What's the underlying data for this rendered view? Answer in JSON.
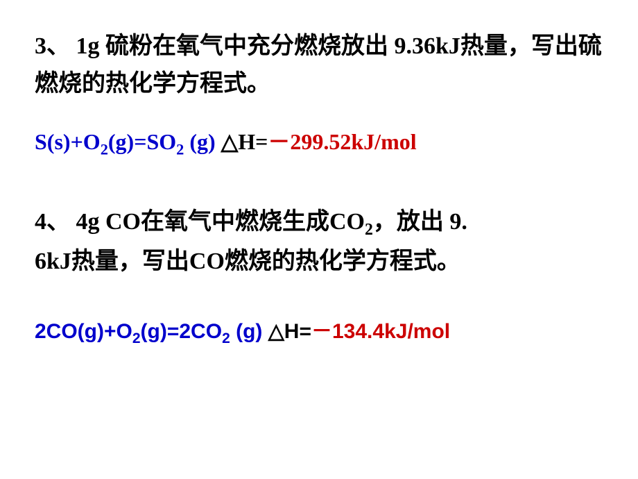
{
  "question3": {
    "text": "3、 1g 硫粉在氧气中充分燃烧放出 9.36kJ热量，写出硫燃烧的热化学方程式。"
  },
  "equation3": {
    "lhs_prefix": "S(s)+O",
    "lhs_sub1": "2",
    "lhs_mid": "(g)=SO",
    "lhs_sub2": "2",
    "lhs_suffix": " (g)",
    "spacer": "   ",
    "delta": "△H=",
    "value": "－299.52kJ/mol",
    "color_lhs": "#0000cc",
    "color_delta": "#000000",
    "color_value": "#cc0000"
  },
  "question4": {
    "text_line1_a": "4、 4g CO在氧气中燃烧生成CO",
    "text_line1_sub": "2",
    "text_line1_b": "，放出 9.",
    "text_line2": "6kJ热量，写出CO燃烧的热化学方程式。"
  },
  "equation4": {
    "lhs_prefix": "2CO(g)+O",
    "lhs_sub1": "2",
    "lhs_mid": "(g)=2CO",
    "lhs_sub2": "2",
    "lhs_suffix": " (g)",
    "spacer": "  ",
    "delta": "△H=",
    "value": "－134.4kJ/mol",
    "color_lhs": "#0000cc",
    "color_delta": "#000000",
    "color_value": "#cc0000"
  }
}
